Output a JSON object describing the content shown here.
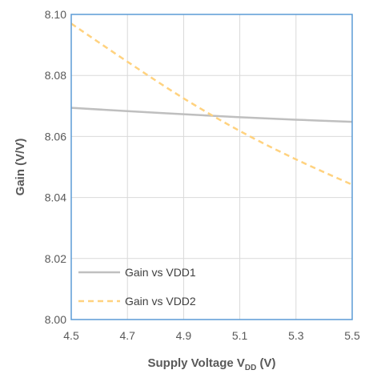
{
  "chart_data": {
    "type": "line",
    "xlabel": "Supply Voltage V",
    "xlabel_subscript": "DD",
    "xlabel_suffix": " (V)",
    "ylabel": "Gain (V/V)",
    "xlim": [
      4.5,
      5.5
    ],
    "ylim": [
      8.0,
      8.1
    ],
    "x_ticks": [
      "4.5",
      "4.7",
      "4.9",
      "5.1",
      "5.3",
      "5.5"
    ],
    "y_ticks": [
      "8.00",
      "8.02",
      "8.04",
      "8.06",
      "8.08",
      "8.10"
    ],
    "grid": true,
    "legend_position": "bottom-left",
    "series": [
      {
        "name": "Gain vs VDD1",
        "color": "#BFBFBF",
        "style": "solid",
        "x": [
          4.5,
          4.7,
          4.9,
          5.1,
          5.3,
          5.5
        ],
        "y": [
          8.0694,
          8.0683,
          8.0673,
          8.0663,
          8.0655,
          8.0648
        ]
      },
      {
        "name": "Gain vs VDD2",
        "color": "#FFD27F",
        "style": "dashed",
        "x": [
          4.5,
          4.7,
          4.9,
          5.1,
          5.3,
          5.5
        ],
        "y": [
          8.097,
          8.0845,
          8.0725,
          8.0618,
          8.0525,
          8.0442
        ]
      }
    ]
  }
}
